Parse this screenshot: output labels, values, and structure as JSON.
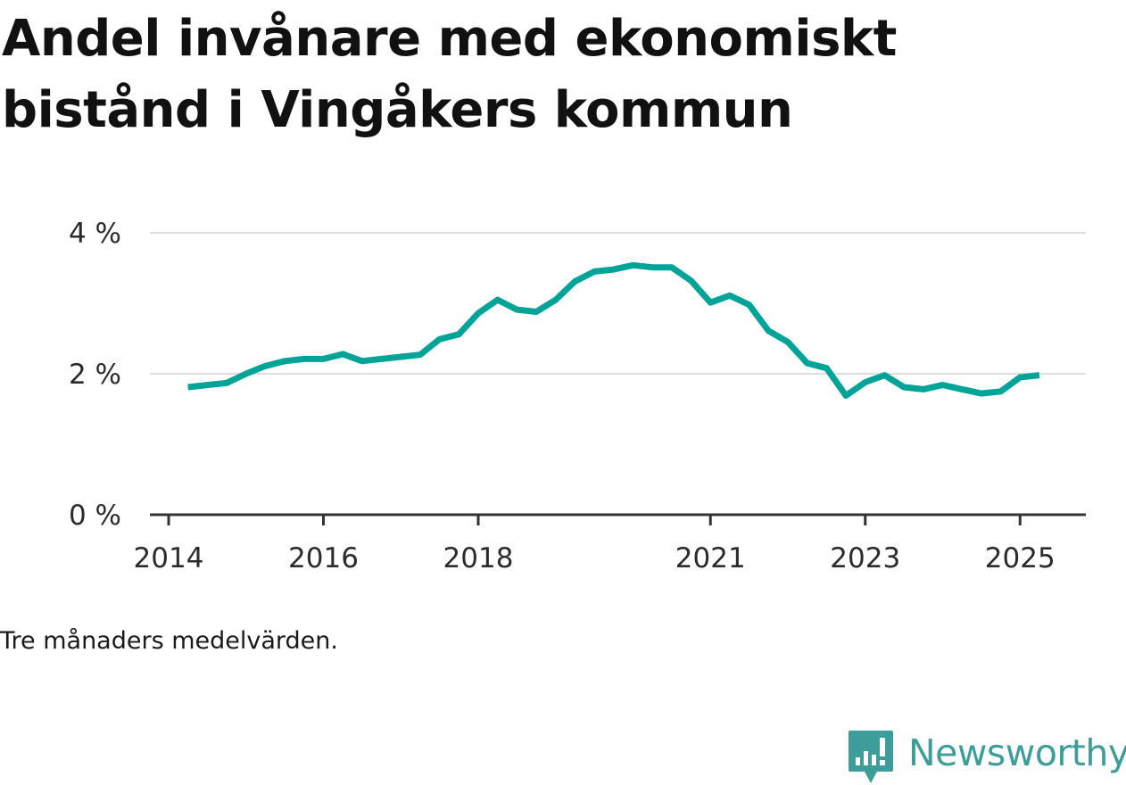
{
  "title": "Andel invånare med ekonomiskt bistånd i Vingåkers kommun",
  "note": "Tre månaders medelvärden.",
  "brand": {
    "name": "Newsworthy",
    "icon": "bar-chart-speech-bubble-icon",
    "color": "#3d9e99"
  },
  "chart_data": {
    "type": "line",
    "title": "Andel invånare med ekonomiskt bistånd i Vingåkers kommun",
    "xlabel": "",
    "ylabel": "",
    "ylim": [
      0,
      4
    ],
    "xlim": [
      2014.0,
      2026.0
    ],
    "grid": true,
    "legend": "none",
    "line_color": "#00a398",
    "y_ticks": [
      {
        "value": 0,
        "label": "0 %"
      },
      {
        "value": 2,
        "label": "2 %"
      },
      {
        "value": 4,
        "label": "4 %"
      }
    ],
    "x_ticks": [
      {
        "value": 2014,
        "label": "2014"
      },
      {
        "value": 2016,
        "label": "2016"
      },
      {
        "value": 2018,
        "label": "2018"
      },
      {
        "value": 2021,
        "label": "2021"
      },
      {
        "value": 2023,
        "label": "2023"
      },
      {
        "value": 2025,
        "label": "2025"
      }
    ],
    "series": [
      {
        "x": [
          2014.25,
          2014.5,
          2014.75,
          2015.0,
          2015.25,
          2015.5,
          2015.75,
          2016.0,
          2016.25,
          2016.5,
          2016.75,
          2017.0,
          2017.25,
          2017.5,
          2017.75,
          2018.0,
          2018.25,
          2018.5,
          2018.75,
          2019.0,
          2019.25,
          2019.5,
          2019.75,
          2020.0,
          2020.25,
          2020.5,
          2020.75,
          2021.0,
          2021.25,
          2021.5,
          2021.75,
          2022.0,
          2022.25,
          2022.5,
          2022.75,
          2023.0,
          2023.25,
          2023.5,
          2023.75,
          2024.0,
          2024.25,
          2024.5,
          2024.75,
          2025.0,
          2025.25
        ],
        "values": [
          1.81,
          1.84,
          1.87,
          2.0,
          2.11,
          2.18,
          2.21,
          2.21,
          2.28,
          2.18,
          2.21,
          2.24,
          2.27,
          2.49,
          2.56,
          2.86,
          3.05,
          2.91,
          2.88,
          3.05,
          3.31,
          3.45,
          3.48,
          3.54,
          3.51,
          3.51,
          3.32,
          3.01,
          3.11,
          2.98,
          2.61,
          2.45,
          2.15,
          2.08,
          1.69,
          1.88,
          1.98,
          1.81,
          1.78,
          1.84,
          1.78,
          1.72,
          1.75,
          1.95,
          1.98
        ]
      }
    ]
  }
}
